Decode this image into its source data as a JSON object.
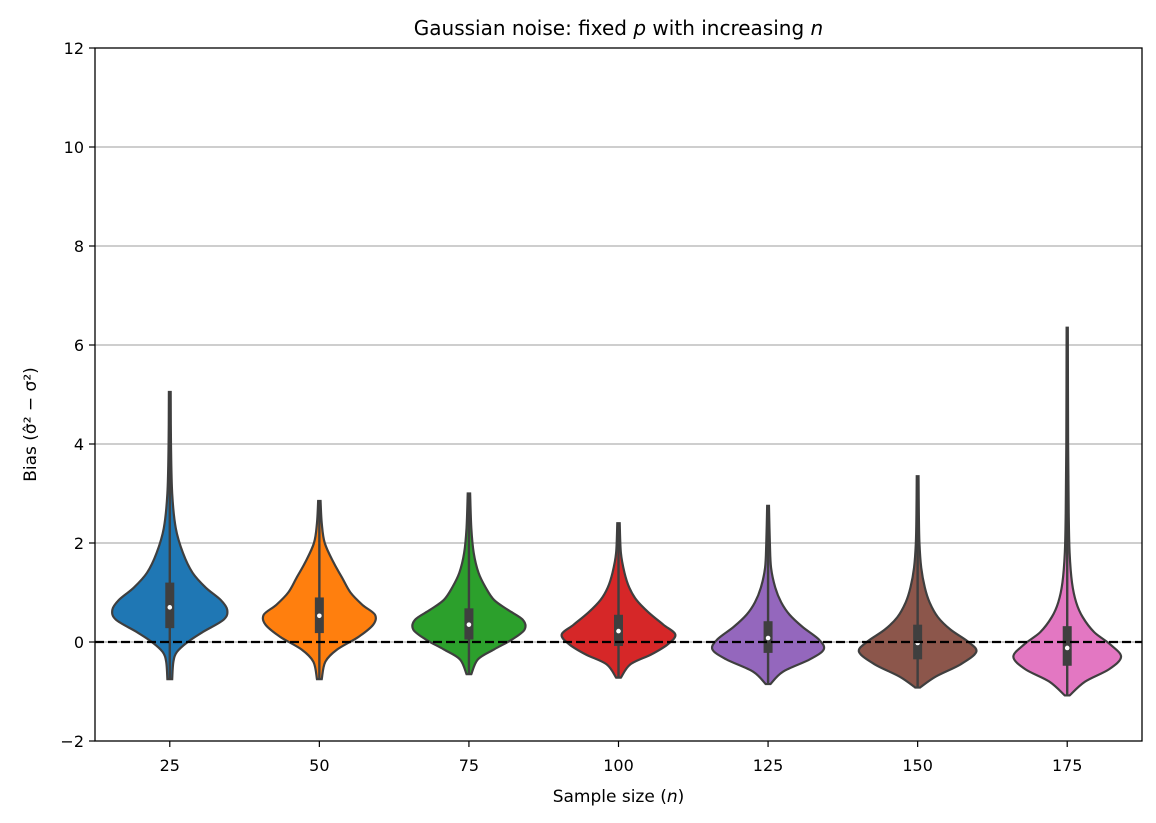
{
  "chart_data": {
    "type": "violin",
    "title_prefix": "Gaussian noise: fixed ",
    "title_p": "p",
    "title_mid": " with increasing ",
    "title_n": "n",
    "xlabel_prefix": "Sample size (",
    "xlabel_var": "n",
    "xlabel_suffix": ")",
    "ylabel": "Bias (σ̂² − σ²)",
    "ylim": [
      -2,
      12
    ],
    "yticks": [
      "−2",
      "0",
      "2",
      "4",
      "6",
      "8",
      "10",
      "12"
    ],
    "ytick_values": [
      -2,
      0,
      2,
      4,
      6,
      8,
      10,
      12
    ],
    "grid": "horizontal",
    "reference_line": {
      "y": 0,
      "style": "dashed",
      "color": "#000000"
    },
    "categories": [
      "25",
      "50",
      "75",
      "100",
      "125",
      "150",
      "175"
    ],
    "series": [
      {
        "category": "25",
        "color": "#1f77b4",
        "min": -0.75,
        "max": 5.05,
        "q1": 0.28,
        "median": 0.7,
        "q3": 1.2,
        "profile": [
          [
            -0.75,
            0.04
          ],
          [
            -0.4,
            0.06
          ],
          [
            -0.2,
            0.12
          ],
          [
            0.0,
            0.3
          ],
          [
            0.2,
            0.55
          ],
          [
            0.45,
            0.9
          ],
          [
            0.65,
            0.96
          ],
          [
            0.85,
            0.85
          ],
          [
            1.1,
            0.6
          ],
          [
            1.4,
            0.38
          ],
          [
            1.8,
            0.22
          ],
          [
            2.3,
            0.1
          ],
          [
            3.0,
            0.04
          ],
          [
            4.0,
            0.02
          ],
          [
            5.05,
            0.015
          ]
        ]
      },
      {
        "category": "50",
        "color": "#ff7f0e",
        "min": -0.75,
        "max": 2.85,
        "q1": 0.18,
        "median": 0.53,
        "q3": 0.9,
        "profile": [
          [
            -0.75,
            0.04
          ],
          [
            -0.4,
            0.1
          ],
          [
            -0.15,
            0.3
          ],
          [
            0.1,
            0.65
          ],
          [
            0.35,
            0.9
          ],
          [
            0.55,
            0.93
          ],
          [
            0.75,
            0.72
          ],
          [
            1.0,
            0.52
          ],
          [
            1.3,
            0.38
          ],
          [
            1.6,
            0.24
          ],
          [
            2.0,
            0.09
          ],
          [
            2.4,
            0.04
          ],
          [
            2.85,
            0.02
          ]
        ]
      },
      {
        "category": "75",
        "color": "#2ca02c",
        "min": -0.65,
        "max": 3.0,
        "q1": 0.05,
        "median": 0.35,
        "q3": 0.68,
        "profile": [
          [
            -0.65,
            0.04
          ],
          [
            -0.35,
            0.15
          ],
          [
            -0.15,
            0.42
          ],
          [
            0.05,
            0.72
          ],
          [
            0.25,
            0.93
          ],
          [
            0.45,
            0.9
          ],
          [
            0.65,
            0.65
          ],
          [
            0.85,
            0.42
          ],
          [
            1.1,
            0.28
          ],
          [
            1.4,
            0.16
          ],
          [
            1.8,
            0.08
          ],
          [
            2.3,
            0.04
          ],
          [
            3.0,
            0.02
          ]
        ]
      },
      {
        "category": "100",
        "color": "#d62728",
        "min": -0.72,
        "max": 2.4,
        "q1": -0.08,
        "median": 0.22,
        "q3": 0.55,
        "profile": [
          [
            -0.72,
            0.04
          ],
          [
            -0.45,
            0.2
          ],
          [
            -0.25,
            0.55
          ],
          [
            -0.05,
            0.82
          ],
          [
            0.15,
            0.95
          ],
          [
            0.35,
            0.75
          ],
          [
            0.6,
            0.5
          ],
          [
            0.85,
            0.3
          ],
          [
            1.1,
            0.18
          ],
          [
            1.4,
            0.1
          ],
          [
            1.8,
            0.04
          ],
          [
            2.4,
            0.02
          ]
        ]
      },
      {
        "category": "125",
        "color": "#9467bd",
        "min": -0.85,
        "max": 2.75,
        "q1": -0.22,
        "median": 0.08,
        "q3": 0.42,
        "profile": [
          [
            -0.85,
            0.04
          ],
          [
            -0.6,
            0.25
          ],
          [
            -0.35,
            0.7
          ],
          [
            -0.15,
            0.93
          ],
          [
            0.05,
            0.85
          ],
          [
            0.3,
            0.58
          ],
          [
            0.55,
            0.36
          ],
          [
            0.8,
            0.22
          ],
          [
            1.1,
            0.12
          ],
          [
            1.5,
            0.05
          ],
          [
            2.0,
            0.03
          ],
          [
            2.75,
            0.015
          ]
        ]
      },
      {
        "category": "150",
        "color": "#8c564b",
        "min": -0.92,
        "max": 3.35,
        "q1": -0.35,
        "median": -0.02,
        "q3": 0.35,
        "profile": [
          [
            -0.92,
            0.04
          ],
          [
            -0.7,
            0.3
          ],
          [
            -0.45,
            0.72
          ],
          [
            -0.2,
            0.98
          ],
          [
            0.0,
            0.85
          ],
          [
            0.25,
            0.55
          ],
          [
            0.5,
            0.34
          ],
          [
            0.8,
            0.2
          ],
          [
            1.1,
            0.12
          ],
          [
            1.5,
            0.06
          ],
          [
            2.0,
            0.03
          ],
          [
            2.6,
            0.02
          ],
          [
            3.35,
            0.015
          ]
        ]
      },
      {
        "category": "175",
        "color": "#e377c2",
        "min": -1.08,
        "max": 6.35,
        "q1": -0.48,
        "median": -0.12,
        "q3": 0.32,
        "profile": [
          [
            -1.08,
            0.04
          ],
          [
            -0.8,
            0.3
          ],
          [
            -0.55,
            0.7
          ],
          [
            -0.3,
            0.9
          ],
          [
            -0.05,
            0.72
          ],
          [
            0.2,
            0.45
          ],
          [
            0.5,
            0.26
          ],
          [
            0.8,
            0.15
          ],
          [
            1.2,
            0.08
          ],
          [
            1.8,
            0.04
          ],
          [
            2.6,
            0.025
          ],
          [
            4.0,
            0.015
          ],
          [
            6.35,
            0.01
          ]
        ]
      }
    ]
  }
}
